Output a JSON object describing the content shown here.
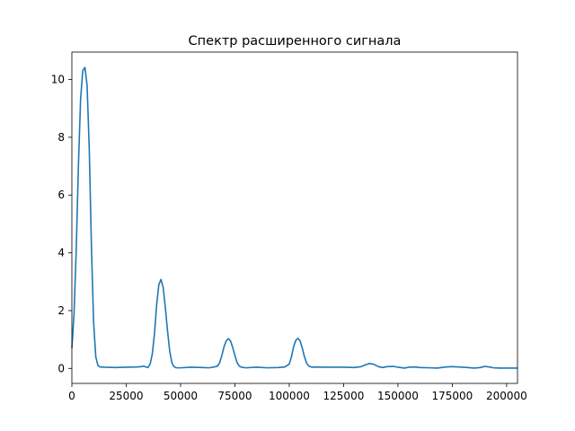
{
  "chart_data": {
    "type": "line",
    "title": "Спектр расширенного сигнала",
    "xlabel": "",
    "ylabel": "",
    "xlim": [
      0,
      205000
    ],
    "ylim": [
      -0.52,
      10.95
    ],
    "xticks": [
      0,
      25000,
      50000,
      75000,
      100000,
      125000,
      150000,
      175000,
      200000
    ],
    "xtick_labels": [
      "0",
      "25000",
      "50000",
      "75000",
      "100000",
      "125000",
      "150000",
      "175000",
      "200000"
    ],
    "yticks": [
      0,
      2,
      4,
      6,
      8,
      10
    ],
    "ytick_labels": [
      "0",
      "2",
      "4",
      "6",
      "8",
      "10"
    ],
    "grid": false,
    "line_color": "#1f77b4",
    "series": [
      {
        "x": [
          0,
          1000,
          2000,
          3000,
          4000,
          5000,
          6000,
          7000,
          8000,
          9000,
          10000,
          11000,
          12000,
          13000,
          15000,
          20000,
          25000,
          30000,
          32000,
          33000,
          34000,
          35000,
          36000,
          37000,
          38000,
          39000,
          40000,
          41000,
          42000,
          43000,
          44000,
          45000,
          46000,
          47000,
          48000,
          50000,
          55000,
          60000,
          63000,
          65000,
          67000,
          68000,
          69000,
          70000,
          71000,
          72000,
          73000,
          74000,
          75000,
          76000,
          77000,
          78000,
          80000,
          85000,
          90000,
          95000,
          98000,
          100000,
          101000,
          102000,
          103000,
          104000,
          105000,
          106000,
          107000,
          108000,
          109000,
          110000,
          111000,
          113000,
          115000,
          120000,
          125000,
          130000,
          133000,
          135000,
          137000,
          139000,
          141000,
          143000,
          145000,
          148000,
          150000,
          153000,
          155000,
          158000,
          160000,
          165000,
          168000,
          170000,
          172000,
          175000,
          178000,
          182000,
          185000,
          188000,
          190000,
          192000,
          194000,
          197000,
          200000,
          205000
        ],
        "y": [
          0.7,
          1.9,
          4.1,
          7.0,
          9.3,
          10.3,
          10.42,
          9.8,
          7.6,
          4.2,
          1.6,
          0.4,
          0.1,
          0.05,
          0.04,
          0.03,
          0.04,
          0.05,
          0.06,
          0.08,
          0.05,
          0.03,
          0.15,
          0.5,
          1.2,
          2.2,
          2.9,
          3.08,
          2.8,
          2.1,
          1.3,
          0.6,
          0.2,
          0.06,
          0.02,
          0.02,
          0.04,
          0.03,
          0.02,
          0.04,
          0.08,
          0.2,
          0.45,
          0.75,
          0.95,
          1.03,
          0.95,
          0.72,
          0.45,
          0.2,
          0.08,
          0.04,
          0.02,
          0.04,
          0.02,
          0.03,
          0.05,
          0.15,
          0.4,
          0.75,
          0.97,
          1.04,
          0.95,
          0.7,
          0.4,
          0.18,
          0.08,
          0.05,
          0.04,
          0.05,
          0.04,
          0.04,
          0.04,
          0.03,
          0.06,
          0.12,
          0.17,
          0.14,
          0.06,
          0.03,
          0.06,
          0.07,
          0.04,
          0.01,
          0.04,
          0.05,
          0.03,
          0.02,
          0.01,
          0.03,
          0.05,
          0.06,
          0.05,
          0.03,
          0.01,
          0.03,
          0.07,
          0.05,
          0.02,
          0.01,
          0.01,
          0.01
        ]
      }
    ]
  }
}
